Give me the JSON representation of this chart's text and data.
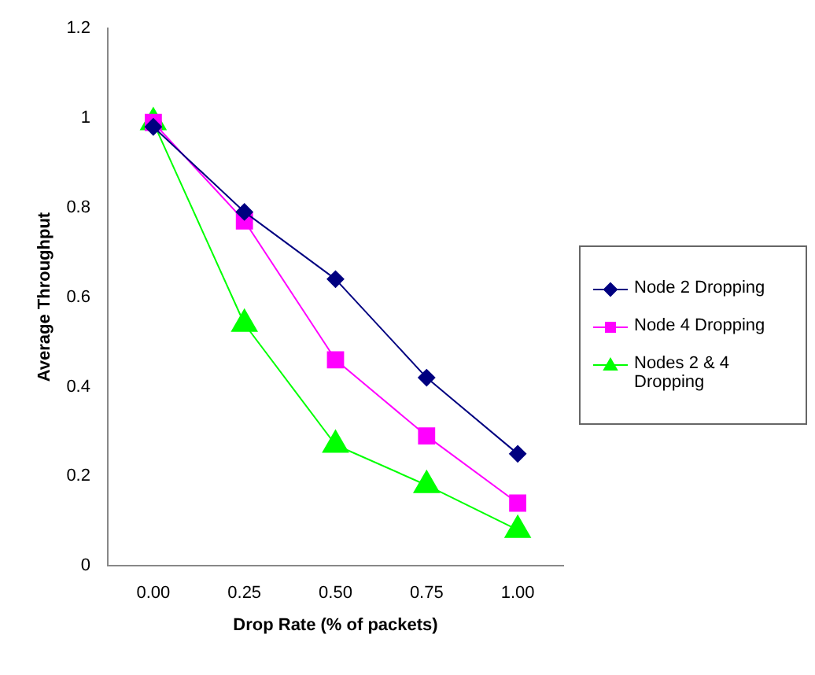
{
  "chart_data": {
    "type": "line",
    "xlabel": "Drop Rate (% of packets)",
    "ylabel": "Average Throughput",
    "categories": [
      "0.00",
      "0.25",
      "0.50",
      "0.75",
      "1.00"
    ],
    "series": [
      {
        "name": "Node 2 Dropping",
        "color": "#000080",
        "marker": "diamond",
        "values": [
          0.98,
          0.79,
          0.64,
          0.42,
          0.25
        ]
      },
      {
        "name": "Node 4 Dropping",
        "color": "#ff00ff",
        "marker": "square",
        "values": [
          0.99,
          0.77,
          0.46,
          0.29,
          0.14
        ]
      },
      {
        "name": "Nodes 2 & 4 Dropping",
        "color": "#00ff00",
        "marker": "triangle",
        "values": [
          0.99,
          0.54,
          0.27,
          0.18,
          0.08
        ]
      }
    ],
    "ylim": [
      0,
      1.2
    ],
    "yticks": [
      0,
      0.2,
      0.4,
      0.6,
      0.8,
      1,
      1.2
    ],
    "grid": false,
    "legend": "right",
    "line_style": "solid"
  }
}
